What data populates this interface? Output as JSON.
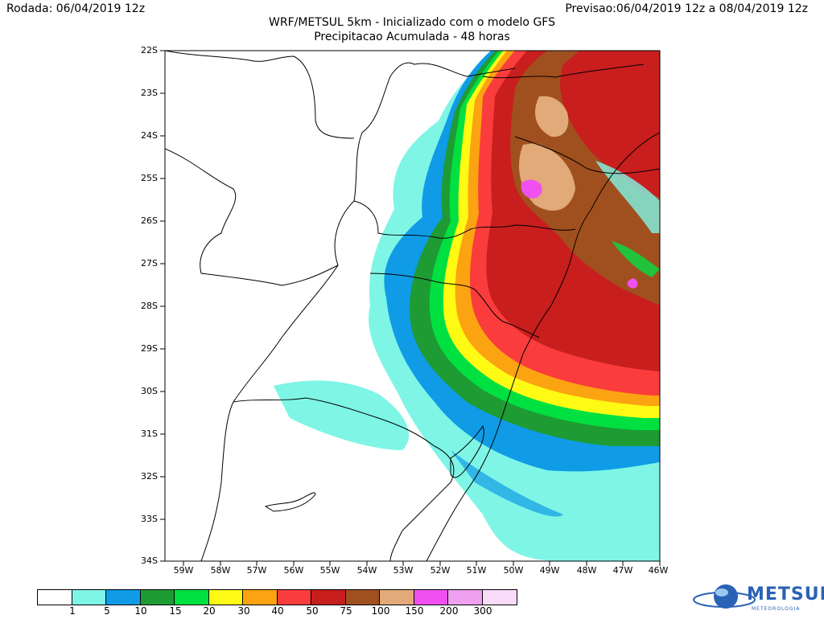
{
  "header": {
    "run": "Rodada: 06/04/2019 12z",
    "forecast": "Previsao:06/04/2019 12z a 08/04/2019 12z",
    "title": "WRF/METSUL 5km - Inicializado com o modelo GFS",
    "subtitle": "Precipitacao Acumulada - 48 horas"
  },
  "map": {
    "lat_ticks": [
      "22S",
      "23S",
      "24S",
      "25S",
      "26S",
      "27S",
      "28S",
      "29S",
      "30S",
      "31S",
      "32S",
      "33S",
      "34S"
    ],
    "lon_ticks": [
      "59W",
      "58W",
      "57W",
      "56W",
      "55W",
      "54W",
      "53W",
      "52W",
      "51W",
      "50W",
      "49W",
      "48W",
      "47W",
      "46W"
    ],
    "lat_range": [
      -34,
      -22
    ],
    "lon_range": [
      -59.5,
      -46
    ]
  },
  "colorbar": {
    "levels": [
      "1",
      "5",
      "10",
      "15",
      "20",
      "30",
      "40",
      "50",
      "75",
      "100",
      "150",
      "200",
      "300"
    ],
    "colors": [
      "#ffffff",
      "#7ff5e6",
      "#0f9be6",
      "#1e9b32",
      "#00e040",
      "#fffa14",
      "#fca312",
      "#fa3c3c",
      "#c81e1e",
      "#a0501e",
      "#e1aa78",
      "#f050f0",
      "#f0a0f0",
      "#fadcfa"
    ]
  },
  "logo": {
    "text": "METSUL",
    "sub": "METEOROLOGIA"
  }
}
